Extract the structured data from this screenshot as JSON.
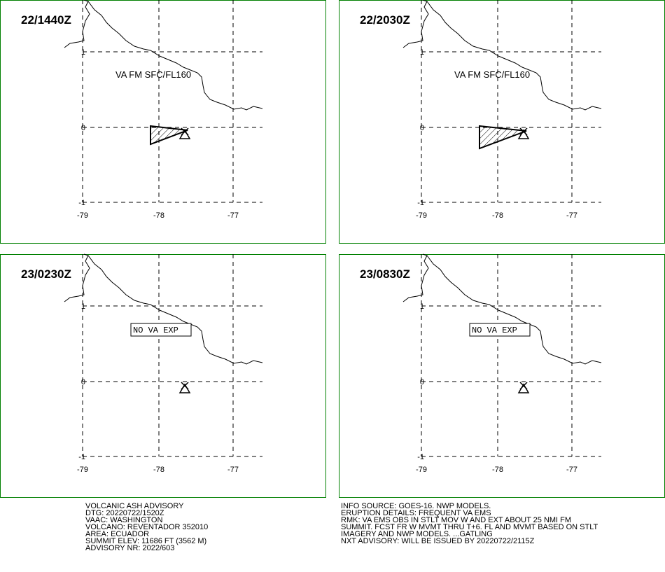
{
  "panels": [
    {
      "time": "22/1440Z",
      "note": "VA FM SFC/FL160",
      "ash": true
    },
    {
      "time": "22/2030Z",
      "note": "VA FM SFC/FL160",
      "ash": true
    },
    {
      "time": "23/0230Z",
      "note": "NO VA EXP",
      "ash": false
    },
    {
      "time": "23/0830Z",
      "note": "NO VA EXP",
      "ash": false
    }
  ],
  "axes": {
    "x": [
      "-79",
      "-78",
      "-77"
    ],
    "y": [
      "1",
      "0",
      "-1"
    ]
  },
  "footer": {
    "left": [
      "VOLCANIC ASH ADVISORY",
      "DTG: 20220722/1520Z",
      "VAAC: WASHINGTON",
      "VOLCANO: REVENTADOR 352010",
      "AREA: ECUADOR",
      "SUMMIT ELEV: 11686 FT (3562 M)",
      "ADVISORY NR: 2022/603"
    ],
    "right": [
      "INFO SOURCE: GOES-16. NWP MODELS.",
      "ERUPTION DETAILS: FREQUENT VA EMS",
      "RMK: VA EMS OBS IN STLT MOV W AND EXT ABOUT 25 NMI FM",
      "SUMMIT. FCST FR W MVMT THRU T+6. FL AND MVMT BASED ON STLT",
      "IMAGERY AND NWP MODELS. ...GATLING",
      "NXT ADVISORY: WILL BE ISSUED BY 20220722/2115Z"
    ]
  }
}
